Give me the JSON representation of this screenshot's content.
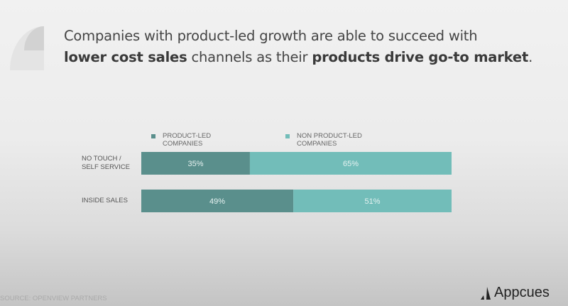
{
  "headline": {
    "part1": "Companies with product-led growth are able to succeed with",
    "bold1": "lower cost sales",
    "part2": " channels as their ",
    "bold2": "products drive go-to market",
    "part3": "."
  },
  "chart_data": {
    "type": "bar",
    "orientation": "horizontal",
    "stacked": true,
    "categories": [
      "NO TOUCH / SELF SERVICE",
      "INSIDE SALES"
    ],
    "series": [
      {
        "name": "PRODUCT-LED COMPANIES",
        "values": [
          35,
          49
        ],
        "labels": [
          "35%",
          "49%"
        ],
        "color": "#5a8f8c"
      },
      {
        "name": "NON PRODUCT-LED COMPANIES",
        "values": [
          65,
          51
        ],
        "labels": [
          "65%",
          "51%"
        ],
        "color": "#72bdb9"
      }
    ],
    "xlim": [
      0,
      100
    ],
    "grid": false,
    "legend_placement": "top"
  },
  "row_labels": [
    [
      "NO TOUCH /",
      "SELF SERVICE"
    ],
    [
      "INSIDE SALES"
    ]
  ],
  "legend": [
    [
      "PRODUCT-LED",
      "COMPANIES"
    ],
    [
      "NON PRODUCT-LED",
      "COMPANIES"
    ]
  ],
  "source": "SOURCE: OPENVIEW PARTNERS",
  "brand": {
    "name": "Appcues",
    "icon": "appcues-logo-icon"
  }
}
